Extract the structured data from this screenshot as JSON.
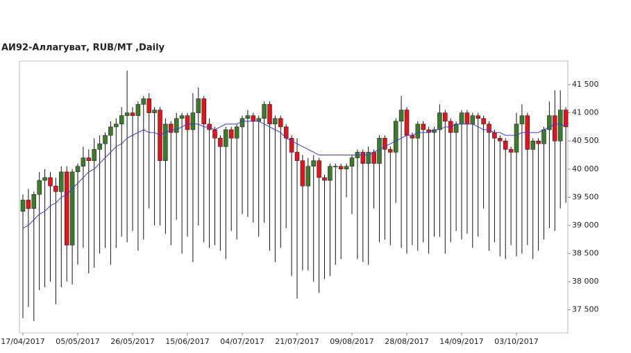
{
  "chart_data": {
    "type": "candlestick",
    "title": "АИ92-Аллагуват,  RUB/MT ,Daily",
    "categories": [
      "17/04/2017",
      null,
      null,
      null,
      null,
      null,
      null,
      null,
      null,
      null,
      "05/05/2017",
      null,
      null,
      null,
      null,
      null,
      null,
      null,
      null,
      null,
      "26/05/2017",
      null,
      null,
      null,
      null,
      null,
      null,
      null,
      null,
      null,
      "15/06/2017",
      null,
      null,
      null,
      null,
      null,
      null,
      null,
      null,
      null,
      "04/07/2017",
      null,
      null,
      null,
      null,
      null,
      null,
      null,
      null,
      null,
      "21/07/2017",
      null,
      null,
      null,
      null,
      null,
      null,
      null,
      null,
      null,
      "09/08/2017",
      null,
      null,
      null,
      null,
      null,
      null,
      null,
      null,
      null,
      "28/08/2017",
      null,
      null,
      null,
      null,
      null,
      null,
      null,
      null,
      null,
      "14/09/2017",
      null,
      null,
      null,
      null,
      null,
      null,
      null,
      null,
      null,
      "03/10/2017",
      null,
      null,
      null,
      null,
      null,
      null,
      null,
      null,
      null
    ],
    "open": [
      39250,
      39450,
      39300,
      39550,
      39800,
      39850,
      39700,
      39600,
      39950,
      38650,
      39950,
      40050,
      40200,
      40150,
      40350,
      40450,
      40600,
      40750,
      40800,
      40950,
      41000,
      40950,
      41150,
      41250,
      41000,
      41050,
      40150,
      40800,
      40650,
      40900,
      40950,
      40700,
      41000,
      41250,
      40800,
      40700,
      40550,
      40400,
      40700,
      40550,
      40750,
      40900,
      40950,
      40850,
      40900,
      41150,
      40800,
      40900,
      40750,
      40550,
      40300,
      40150,
      39700,
      40050,
      40150,
      39850,
      39800,
      40050,
      40050,
      40000,
      40050,
      40200,
      40300,
      40100,
      40300,
      40100,
      40550,
      40350,
      40300,
      40850,
      41050,
      40600,
      40550,
      40800,
      40700,
      40650,
      40700,
      41000,
      40850,
      40650,
      40800,
      41000,
      40800,
      40950,
      40900,
      40800,
      40650,
      40550,
      40500,
      40350,
      40300,
      40800,
      40950,
      40350,
      40500,
      40450,
      40700,
      40950,
      40500,
      41050
    ],
    "high": [
      39550,
      39650,
      39600,
      39950,
      40000,
      39950,
      39850,
      40050,
      40050,
      40000,
      40100,
      40400,
      40350,
      40550,
      40600,
      40650,
      40850,
      40900,
      41100,
      41750,
      41100,
      41200,
      41300,
      41350,
      41100,
      41100,
      40900,
      40850,
      41000,
      41000,
      41000,
      41350,
      41450,
      41300,
      40900,
      40750,
      40600,
      40750,
      40750,
      40800,
      40950,
      41050,
      41000,
      40950,
      41200,
      41200,
      40950,
      40950,
      40800,
      40600,
      40550,
      40250,
      40200,
      40250,
      40200,
      39900,
      40100,
      40100,
      40100,
      40100,
      40250,
      40350,
      40350,
      40400,
      40350,
      40600,
      40600,
      40400,
      40900,
      41300,
      41100,
      40650,
      40850,
      40850,
      40750,
      40750,
      41150,
      41050,
      40900,
      40850,
      41050,
      41050,
      41000,
      41000,
      40950,
      40850,
      40700,
      40600,
      40550,
      40400,
      41000,
      41150,
      41000,
      40550,
      40550,
      40750,
      41200,
      41400,
      41400,
      41100
    ],
    "low": [
      37350,
      37550,
      37300,
      37850,
      37900,
      38000,
      37600,
      37900,
      38000,
      37950,
      38300,
      38600,
      38150,
      38250,
      38500,
      38600,
      38300,
      38600,
      38800,
      38700,
      38900,
      38550,
      38750,
      39300,
      39000,
      39000,
      38850,
      38650,
      39100,
      38500,
      38800,
      38350,
      39000,
      38700,
      38600,
      38650,
      38550,
      38400,
      38900,
      38750,
      39200,
      39150,
      39050,
      38800,
      39050,
      38550,
      38350,
      38600,
      38950,
      38100,
      37700,
      38200,
      38200,
      38000,
      37800,
      38050,
      38100,
      38300,
      38400,
      39500,
      39200,
      38400,
      38350,
      38300,
      39300,
      38700,
      38750,
      38650,
      39400,
      38600,
      38500,
      38650,
      38550,
      38700,
      38500,
      38800,
      38800,
      38500,
      38700,
      38900,
      38750,
      38850,
      38600,
      38800,
      39300,
      38550,
      38700,
      38450,
      38400,
      38650,
      38450,
      38500,
      38650,
      38400,
      38550,
      38750,
      38950,
      38900,
      39300,
      39400
    ],
    "close": [
      39450,
      39300,
      39550,
      39800,
      39850,
      39700,
      39600,
      39950,
      38650,
      39950,
      40050,
      40200,
      40150,
      40350,
      40450,
      40600,
      40750,
      40800,
      40950,
      41000,
      40950,
      41150,
      41250,
      41000,
      41050,
      40150,
      40800,
      40650,
      40900,
      40950,
      40700,
      41000,
      41250,
      40800,
      40700,
      40550,
      40400,
      40700,
      40550,
      40750,
      40900,
      40950,
      40850,
      40900,
      41150,
      40800,
      40900,
      40750,
      40550,
      40300,
      40150,
      39700,
      40050,
      40150,
      39850,
      39800,
      40050,
      40050,
      40000,
      40050,
      40200,
      40300,
      40100,
      40300,
      40100,
      40550,
      40350,
      40300,
      40850,
      41050,
      40600,
      40550,
      40800,
      40700,
      40650,
      40700,
      41000,
      40850,
      40650,
      40800,
      41000,
      40800,
      40950,
      40900,
      40800,
      40650,
      40550,
      40500,
      40350,
      40300,
      40800,
      40950,
      40350,
      40500,
      40450,
      40700,
      40950,
      40500,
      41050,
      40750
    ],
    "moving_average": {
      "color": "#3a3acc",
      "values": [
        38950,
        39000,
        39100,
        39200,
        39250,
        39350,
        39400,
        39500,
        39550,
        39650,
        39750,
        39850,
        39950,
        40000,
        40100,
        40200,
        40300,
        40400,
        40450,
        40550,
        40600,
        40650,
        40700,
        40650,
        40650,
        40600,
        40650,
        40700,
        40700,
        40750,
        40800,
        40800,
        40800,
        40750,
        40750,
        40700,
        40750,
        40800,
        40800,
        40800,
        40850,
        40850,
        40850,
        40850,
        40800,
        40750,
        40700,
        40650,
        40550,
        40500,
        40450,
        40400,
        40350,
        40300,
        40250,
        40250,
        40250,
        40250,
        40250,
        40250,
        40250,
        40250,
        40250,
        40250,
        40300,
        40350,
        40400,
        40450,
        40500,
        40550,
        40600,
        40600,
        40650,
        40650,
        40650,
        40700,
        40700,
        40750,
        40750,
        40800,
        40800,
        40800,
        40800,
        40750,
        40700,
        40700,
        40650,
        40650,
        40600,
        40600,
        40600,
        40650,
        40650,
        40650,
        40650,
        40700,
        40750,
        40800,
        40800,
        40750
      ]
    },
    "up_color": "#3c7a2c",
    "down_color": "#e3141b",
    "ylim": [
      37090,
      41920
    ],
    "yticks": [
      {
        "value": 37500,
        "label": "37 500"
      },
      {
        "value": 38000,
        "label": "38 000"
      },
      {
        "value": 38500,
        "label": "38 500"
      },
      {
        "value": 39000,
        "label": "39 000"
      },
      {
        "value": 39500,
        "label": "39 500"
      },
      {
        "value": 40000,
        "label": "40 000"
      },
      {
        "value": 40500,
        "label": "40 500"
      },
      {
        "value": 41000,
        "label": "41 000"
      },
      {
        "value": 41500,
        "label": "41 500"
      }
    ],
    "grid": false
  }
}
